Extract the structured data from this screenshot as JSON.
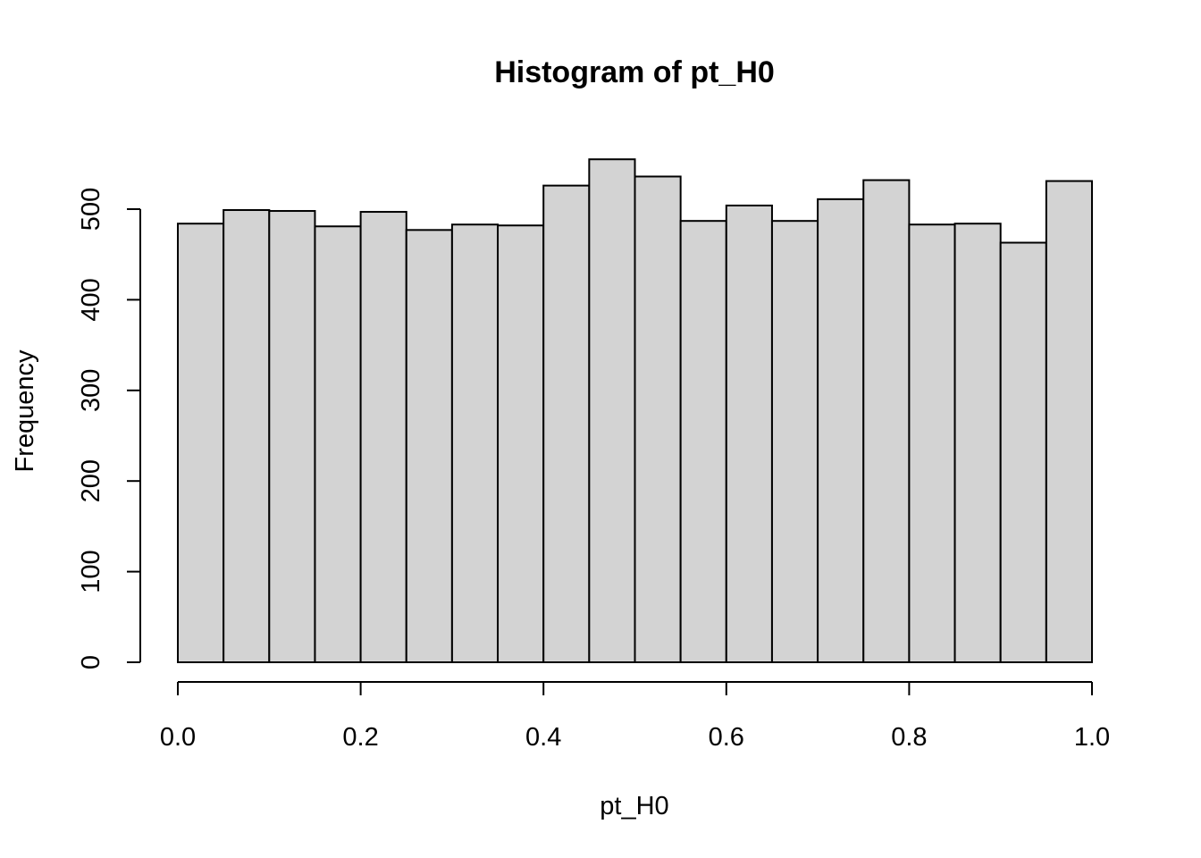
{
  "chart_data": {
    "type": "bar",
    "title": "Histogram of pt_H0",
    "xlabel": "pt_H0",
    "ylabel": "Frequency",
    "bin_edges": [
      0.0,
      0.05,
      0.1,
      0.15,
      0.2,
      0.25,
      0.3,
      0.35,
      0.4,
      0.45,
      0.5,
      0.55,
      0.6,
      0.65,
      0.7,
      0.75,
      0.8,
      0.85,
      0.9,
      0.95,
      1.0
    ],
    "values": [
      484,
      499,
      498,
      481,
      497,
      477,
      483,
      482,
      526,
      555,
      536,
      487,
      504,
      487,
      511,
      532,
      483,
      484,
      463,
      531
    ],
    "xlim": [
      0,
      1
    ],
    "ylim": [
      0,
      560
    ],
    "x_ticks": [
      0.0,
      0.2,
      0.4,
      0.6,
      0.8,
      1.0
    ],
    "x_tick_labels": [
      "0.0",
      "0.2",
      "0.4",
      "0.6",
      "0.8",
      "1.0"
    ],
    "y_ticks": [
      0,
      100,
      200,
      300,
      400,
      500
    ],
    "y_tick_labels": [
      "0",
      "100",
      "200",
      "300",
      "400",
      "500"
    ],
    "bar_fill": "#d3d3d3",
    "bar_stroke": "#000000",
    "grid": false,
    "legend": "none"
  }
}
